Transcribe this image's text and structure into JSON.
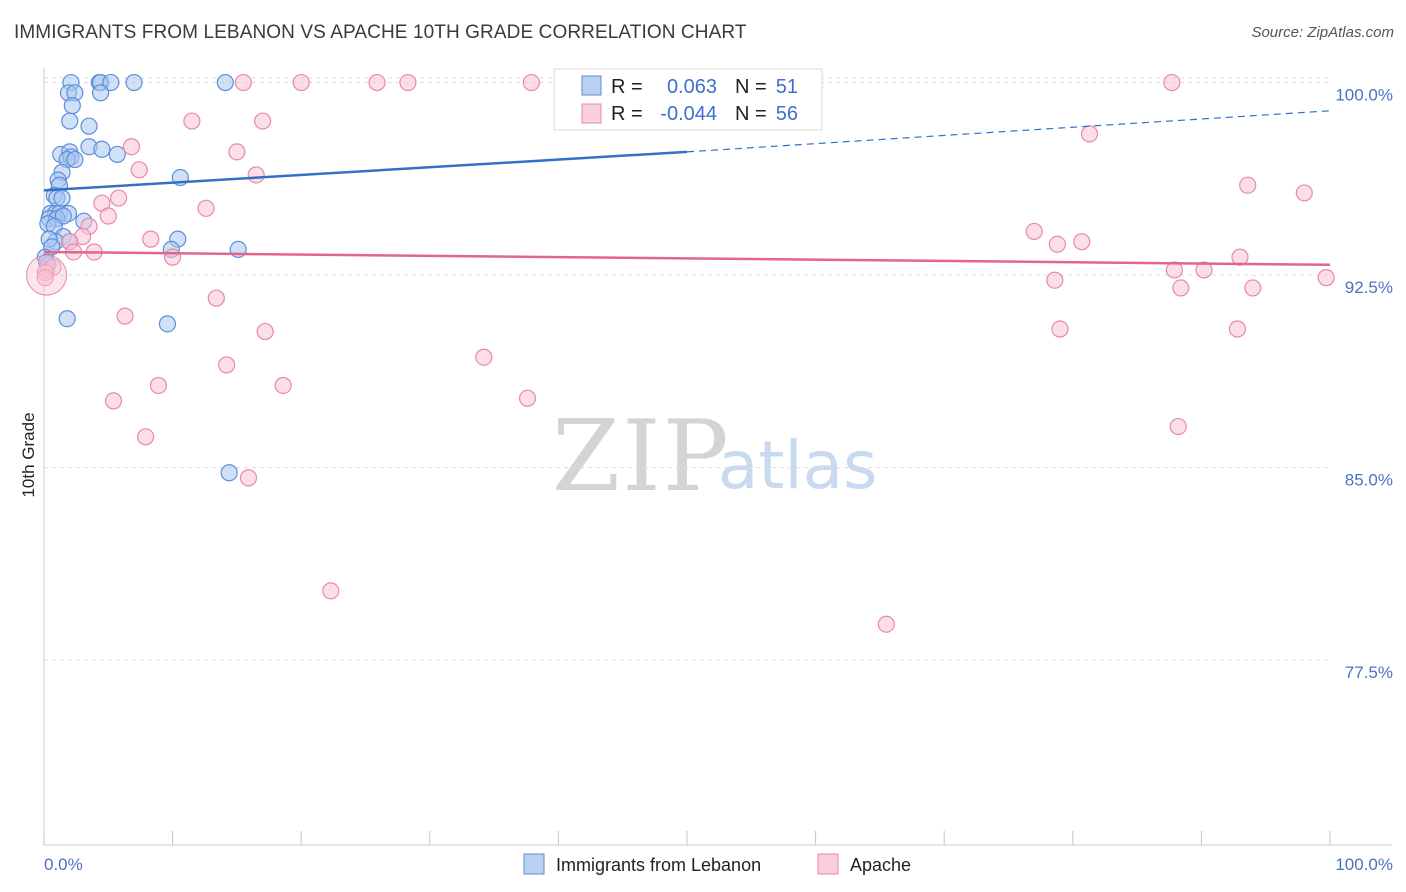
{
  "title": "IMMIGRANTS FROM LEBANON VS APACHE 10TH GRADE CORRELATION CHART",
  "source": "Source: ZipAtlas.com",
  "watermark": {
    "zip": "ZIP",
    "atlas": "atlas"
  },
  "colors": {
    "series_blue_fill": "#a9c6f0",
    "series_blue_stroke": "#5b8fd9",
    "series_pink_fill": "#f7c3d4",
    "series_pink_stroke": "#e889a8",
    "blue_line": "#3370c9",
    "pink_line": "#e0668e",
    "tick_text": "#4a72c4",
    "grid": "#dddddd"
  },
  "stats": [
    {
      "r_label": "R =",
      "r_value": "0.063",
      "n_label": "N =",
      "n_value": "51"
    },
    {
      "r_label": "R =",
      "r_value": "-0.044",
      "n_label": "N =",
      "n_value": "56"
    }
  ],
  "chart_data": {
    "type": "scatter",
    "title": "IMMIGRANTS FROM LEBANON VS APACHE 10TH GRADE CORRELATION CHART",
    "xlabel": "",
    "ylabel": "10th Grade",
    "xlim": [
      0,
      100
    ],
    "ylim": [
      70.3,
      100.8
    ],
    "x_tick_labels": [
      "0.0%",
      "100.0%"
    ],
    "y_ticks": [
      77.5,
      85.0,
      92.5,
      100.0
    ],
    "y_tick_labels": [
      "77.5%",
      "85.0%",
      "92.5%",
      "100.0%"
    ],
    "grid": true,
    "legend_position": "bottom-center",
    "series": [
      {
        "name": "Immigrants from Lebanon",
        "color": "#5b8fd9",
        "points": [
          [
            2.1,
            100
          ],
          [
            4.3,
            100
          ],
          [
            4.4,
            100
          ],
          [
            5.2,
            100
          ],
          [
            7.0,
            100
          ],
          [
            14.1,
            100
          ],
          [
            1.9,
            99.6
          ],
          [
            2.4,
            99.6
          ],
          [
            4.4,
            99.6
          ],
          [
            2.2,
            99.1
          ],
          [
            2.0,
            98.5
          ],
          [
            3.5,
            98.3
          ],
          [
            3.5,
            97.5
          ],
          [
            4.5,
            97.4
          ],
          [
            5.7,
            97.2
          ],
          [
            1.3,
            97.2
          ],
          [
            2.0,
            97.3
          ],
          [
            2.1,
            97.1
          ],
          [
            1.8,
            97.0
          ],
          [
            2.4,
            97.0
          ],
          [
            1.4,
            96.5
          ],
          [
            1.1,
            96.2
          ],
          [
            1.2,
            96.0
          ],
          [
            10.6,
            96.3
          ],
          [
            0.8,
            95.6
          ],
          [
            1.0,
            95.5
          ],
          [
            1.4,
            95.5
          ],
          [
            0.5,
            94.9
          ],
          [
            0.9,
            94.9
          ],
          [
            1.2,
            94.9
          ],
          [
            1.9,
            94.9
          ],
          [
            0.4,
            94.7
          ],
          [
            1.0,
            94.7
          ],
          [
            1.5,
            94.8
          ],
          [
            0.3,
            94.5
          ],
          [
            0.8,
            94.4
          ],
          [
            3.1,
            94.6
          ],
          [
            1.5,
            94.0
          ],
          [
            0.9,
            93.8
          ],
          [
            0.4,
            93.9
          ],
          [
            2.0,
            93.8
          ],
          [
            10.4,
            93.9
          ],
          [
            0.6,
            93.6
          ],
          [
            9.9,
            93.5
          ],
          [
            15.1,
            93.5
          ],
          [
            0.1,
            93.2
          ],
          [
            0.3,
            92.9
          ],
          [
            1.8,
            90.8
          ],
          [
            9.6,
            90.6
          ],
          [
            14.4,
            84.8
          ],
          [
            0.2,
            93.0
          ]
        ]
      },
      {
        "name": "Apache",
        "color": "#e889a8",
        "points": [
          [
            15.5,
            100
          ],
          [
            20.0,
            100
          ],
          [
            25.9,
            100
          ],
          [
            28.3,
            100
          ],
          [
            37.9,
            100
          ],
          [
            87.7,
            100
          ],
          [
            11.5,
            98.5
          ],
          [
            17.0,
            98.5
          ],
          [
            81.3,
            98.0
          ],
          [
            6.8,
            97.5
          ],
          [
            15.0,
            97.3
          ],
          [
            7.4,
            96.6
          ],
          [
            16.5,
            96.4
          ],
          [
            93.6,
            96.0
          ],
          [
            98.0,
            95.7
          ],
          [
            5.8,
            95.5
          ],
          [
            4.5,
            95.3
          ],
          [
            12.6,
            95.1
          ],
          [
            5.0,
            94.8
          ],
          [
            3.5,
            94.4
          ],
          [
            3.0,
            94.0
          ],
          [
            8.3,
            93.9
          ],
          [
            77.0,
            94.2
          ],
          [
            78.8,
            93.7
          ],
          [
            80.7,
            93.8
          ],
          [
            2.0,
            93.8
          ],
          [
            2.3,
            93.4
          ],
          [
            3.9,
            93.4
          ],
          [
            10.0,
            93.2
          ],
          [
            93.0,
            93.2
          ],
          [
            0.2,
            92.7
          ],
          [
            0.7,
            92.8
          ],
          [
            87.9,
            92.7
          ],
          [
            90.2,
            92.7
          ],
          [
            78.6,
            92.3
          ],
          [
            88.4,
            92.0
          ],
          [
            94.0,
            92.0
          ],
          [
            99.7,
            92.4
          ],
          [
            13.4,
            91.6
          ],
          [
            6.3,
            90.9
          ],
          [
            17.2,
            90.3
          ],
          [
            79.0,
            90.4
          ],
          [
            92.8,
            90.4
          ],
          [
            34.2,
            89.3
          ],
          [
            14.2,
            89.0
          ],
          [
            8.9,
            88.2
          ],
          [
            18.6,
            88.2
          ],
          [
            5.4,
            87.6
          ],
          [
            37.6,
            87.7
          ],
          [
            88.2,
            86.6
          ],
          [
            7.9,
            86.2
          ],
          [
            15.9,
            84.6
          ],
          [
            22.3,
            80.2
          ],
          [
            65.5,
            78.9
          ],
          [
            0.1,
            92.6
          ],
          [
            0.1,
            92.4
          ]
        ]
      }
    ],
    "trend_lines": [
      {
        "series": "Immigrants from Lebanon",
        "x": [
          0,
          50
        ],
        "y": [
          95.8,
          97.3
        ],
        "dashed_extension": {
          "x": [
            50,
            100
          ],
          "y": [
            97.3,
            98.9
          ]
        }
      },
      {
        "series": "Apache",
        "x": [
          0,
          100
        ],
        "y": [
          93.4,
          92.9
        ]
      }
    ]
  },
  "legend": [
    {
      "name": "Immigrants from Lebanon"
    },
    {
      "name": "Apache"
    }
  ]
}
